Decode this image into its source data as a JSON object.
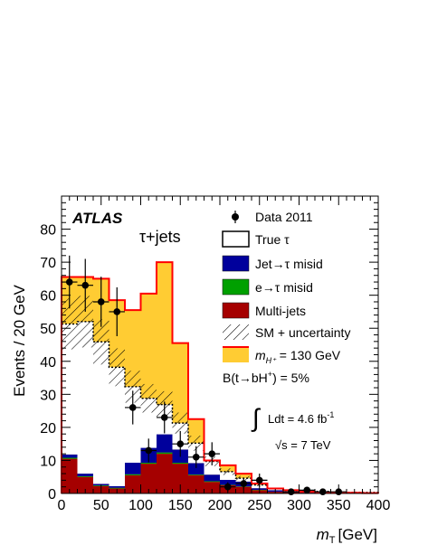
{
  "chart_data": {
    "type": "bar",
    "stacked": true,
    "xlabel_var": "m",
    "xlabel_sub": "T",
    "xlabel_unit": "[GeV]",
    "ylabel": "Events / 20 GeV",
    "xlim": [
      0,
      400
    ],
    "ylim": [
      0,
      90
    ],
    "x_ticks": [
      "0",
      "50",
      "100",
      "150",
      "200",
      "250",
      "300",
      "350",
      "400"
    ],
    "y_ticks": [
      "0",
      "10",
      "20",
      "30",
      "40",
      "50",
      "60",
      "70",
      "80"
    ],
    "bin_edges": [
      0,
      20,
      40,
      60,
      80,
      100,
      120,
      140,
      160,
      180,
      200,
      220,
      240,
      260,
      280,
      300,
      320,
      340,
      360,
      380,
      400
    ],
    "series": [
      {
        "name": "Multi-jets",
        "color": "#a50000",
        "values": [
          10.5,
          5.0,
          2.2,
          1.5,
          5.5,
          9.0,
          12.0,
          9.0,
          5.5,
          3.5,
          2.5,
          2.0,
          1.0,
          0.5,
          0.3,
          0.2,
          0.2,
          0.1,
          0.1,
          0.1
        ]
      },
      {
        "name": "e→τ misid",
        "color": "#00a000",
        "values": [
          0.3,
          0.2,
          0.2,
          0.2,
          0.3,
          0.3,
          0.4,
          0.3,
          0.2,
          0.2,
          0.1,
          0.1,
          0.1,
          0.0,
          0.0,
          0.0,
          0.0,
          0.0,
          0.0,
          0.0
        ]
      },
      {
        "name": "Jet→τ misid",
        "color": "#00009c",
        "values": [
          1.0,
          0.8,
          0.5,
          0.5,
          3.5,
          4.5,
          5.5,
          4.0,
          3.5,
          2.0,
          1.5,
          1.5,
          0.5,
          0.5,
          0.3,
          0.2,
          0.2,
          0.1,
          0.1,
          0.1
        ]
      },
      {
        "name": "True τ",
        "color": "#ffffff",
        "values": [
          39.5,
          46.0,
          43.0,
          36.0,
          23.0,
          15.0,
          9.0,
          8.0,
          6.0,
          4.0,
          2.5,
          1.0,
          1.0,
          0.5,
          0.3,
          0.2,
          0.2,
          0.1,
          0.1,
          0.1
        ]
      }
    ],
    "signal": {
      "name_var": "m",
      "name_sub": "H⁺",
      "name_rest": " = 130 GeV",
      "color": "#ff0000",
      "values": [
        65.5,
        65.5,
        65.0,
        58.5,
        55.5,
        60.5,
        70.0,
        45.5,
        22.5,
        10.0,
        8.5,
        6.0,
        3.0,
        1.5,
        1.0,
        0.5,
        0.3,
        0.2,
        0.2,
        0.1
      ]
    },
    "uncertainty_label": "SM + uncertainty",
    "uncertainty_fraction": 0.15,
    "data_label": "Data 2011",
    "data_points": [
      {
        "x": 10,
        "y": 64,
        "err": 8
      },
      {
        "x": 30,
        "y": 63,
        "err": 8
      },
      {
        "x": 50,
        "y": 58,
        "err": 7.6
      },
      {
        "x": 70,
        "y": 55,
        "err": 7.4
      },
      {
        "x": 90,
        "y": 26,
        "err": 5.1
      },
      {
        "x": 110,
        "y": 13,
        "err": 3.6
      },
      {
        "x": 130,
        "y": 23,
        "err": 4.8
      },
      {
        "x": 150,
        "y": 15,
        "err": 3.9
      },
      {
        "x": 170,
        "y": 11,
        "err": 3.3
      },
      {
        "x": 190,
        "y": 12,
        "err": 3.5
      },
      {
        "x": 210,
        "y": 2,
        "err": 1.4
      },
      {
        "x": 230,
        "y": 3,
        "err": 1.7
      },
      {
        "x": 250,
        "y": 4,
        "err": 2
      },
      {
        "x": 290,
        "y": 0.5,
        "err": 0.7
      },
      {
        "x": 310,
        "y": 1,
        "err": 1
      },
      {
        "x": 330,
        "y": 0.5,
        "err": 0.7
      },
      {
        "x": 350,
        "y": 0.5,
        "err": 0.7
      }
    ],
    "legend_placement": "top-right",
    "grid": false
  },
  "labels": {
    "atlas": "ATLAS",
    "channel": "τ+jets",
    "branching_prefix": "B(t→bH",
    "branching_sup": "+",
    "branching_suffix": ") = 5%",
    "lumi_integral": "∫",
    "lumi_text": "Ldt = 4.6 fb",
    "lumi_sup": "-1",
    "energy": "√s = 7 TeV"
  }
}
